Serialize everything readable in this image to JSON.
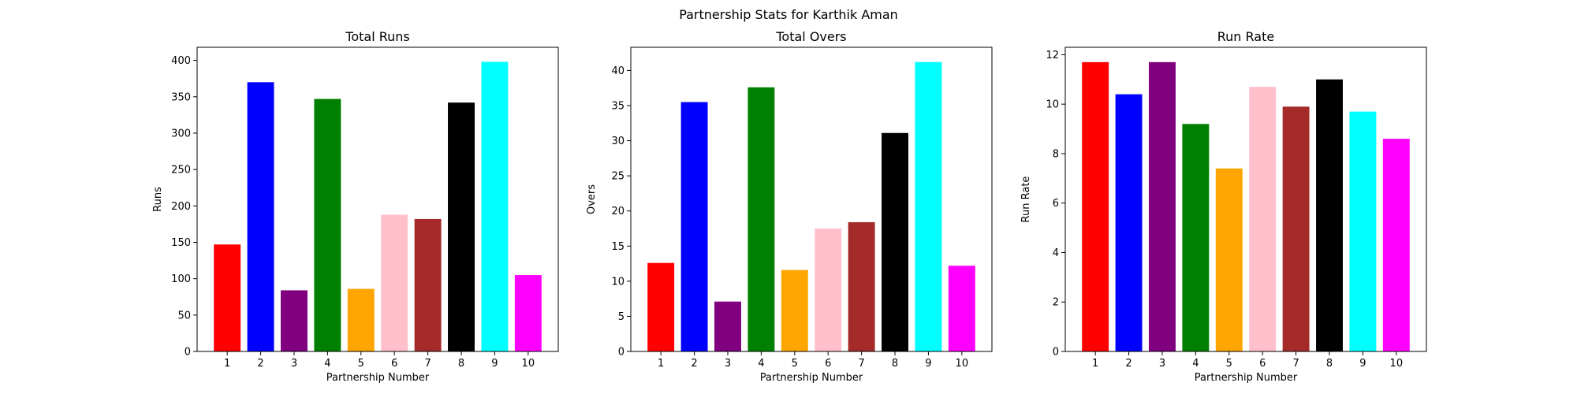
{
  "figure": {
    "title": "Partnership Stats for Karthik Aman"
  },
  "chart_data": [
    {
      "type": "bar",
      "title": "Total Runs",
      "xlabel": "Partnership Number",
      "ylabel": "Runs",
      "categories": [
        "1",
        "2",
        "3",
        "4",
        "5",
        "6",
        "7",
        "8",
        "9",
        "10"
      ],
      "values": [
        147,
        370,
        84,
        347,
        86,
        188,
        182,
        342,
        398,
        105
      ],
      "colors": [
        "#ff0000",
        "#0000ff",
        "#800080",
        "#008000",
        "#ffa500",
        "#ffc0cb",
        "#a52a2a",
        "#000000",
        "#00ffff",
        "#ff00ff"
      ],
      "ylim": [
        0,
        418
      ],
      "yticks": [
        0,
        50,
        100,
        150,
        200,
        250,
        300,
        350,
        400
      ],
      "grid": false
    },
    {
      "type": "bar",
      "title": "Total Overs",
      "xlabel": "Partnership Number",
      "ylabel": "Overs",
      "categories": [
        "1",
        "2",
        "3",
        "4",
        "5",
        "6",
        "7",
        "8",
        "9",
        "10"
      ],
      "values": [
        12.6,
        35.5,
        7.1,
        37.6,
        11.6,
        17.5,
        18.4,
        31.1,
        41.2,
        12.2
      ],
      "colors": [
        "#ff0000",
        "#0000ff",
        "#800080",
        "#008000",
        "#ffa500",
        "#ffc0cb",
        "#a52a2a",
        "#000000",
        "#00ffff",
        "#ff00ff"
      ],
      "ylim": [
        0,
        43.3
      ],
      "yticks": [
        0,
        5,
        10,
        15,
        20,
        25,
        30,
        35,
        40
      ],
      "grid": false
    },
    {
      "type": "bar",
      "title": "Run Rate",
      "xlabel": "Partnership Number",
      "ylabel": "Run Rate",
      "categories": [
        "1",
        "2",
        "3",
        "4",
        "5",
        "6",
        "7",
        "8",
        "9",
        "10"
      ],
      "values": [
        11.7,
        10.4,
        11.7,
        9.2,
        7.4,
        10.7,
        9.9,
        11.0,
        9.7,
        8.6
      ],
      "colors": [
        "#ff0000",
        "#0000ff",
        "#800080",
        "#008000",
        "#ffa500",
        "#ffc0cb",
        "#a52a2a",
        "#000000",
        "#00ffff",
        "#ff00ff"
      ],
      "ylim": [
        0,
        12.3
      ],
      "yticks": [
        0,
        2,
        4,
        6,
        8,
        10,
        12
      ],
      "grid": false
    }
  ]
}
